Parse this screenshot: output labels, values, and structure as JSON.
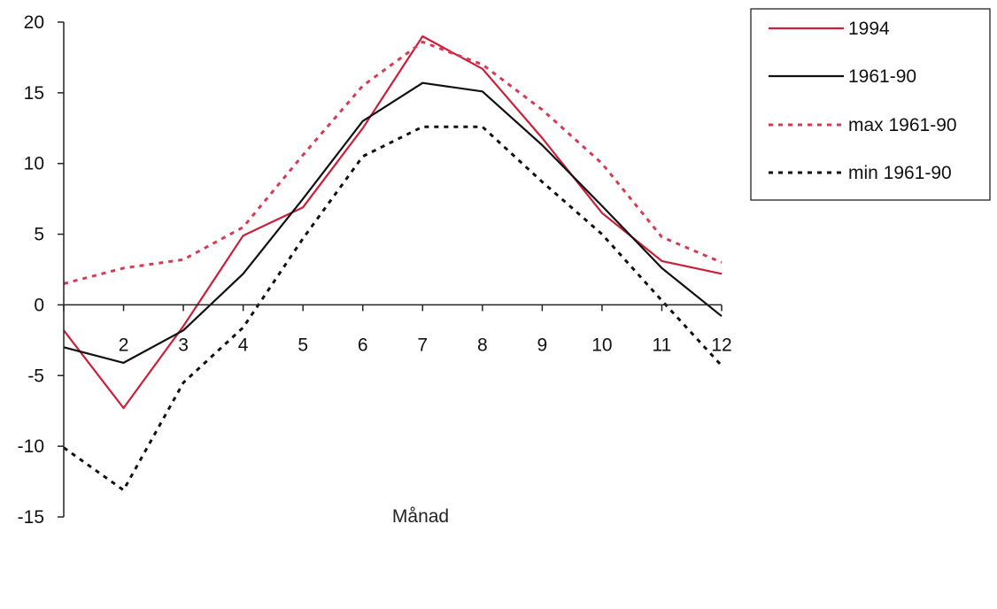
{
  "chart_data": {
    "type": "line",
    "title": "",
    "xlabel": "Månad",
    "ylabel": "",
    "x": [
      1,
      2,
      3,
      4,
      5,
      6,
      7,
      8,
      9,
      10,
      11,
      12
    ],
    "x_tick_labels": [
      "2",
      "3",
      "4",
      "5",
      "6",
      "7",
      "8",
      "9",
      "10",
      "11",
      "12"
    ],
    "y_ticks": [
      -15,
      -10,
      -5,
      0,
      5,
      10,
      15,
      20
    ],
    "y_tick_labels": [
      "-15",
      "-10",
      "-5",
      "0",
      "5",
      "10",
      "15",
      "20"
    ],
    "xlim": [
      1,
      12
    ],
    "ylim": [
      -15,
      20
    ],
    "grid": false,
    "legend_position": "top-right",
    "series": [
      {
        "name": "1994",
        "color": "#cc1f3a",
        "style": "solid",
        "values": [
          -1.8,
          -7.3,
          -1.5,
          4.9,
          6.9,
          12.5,
          19.0,
          16.7,
          11.8,
          6.5,
          3.1,
          2.2
        ]
      },
      {
        "name": "1961-90",
        "color": "#111111",
        "style": "solid",
        "values": [
          -3.0,
          -4.1,
          -1.8,
          2.2,
          7.5,
          13.0,
          15.7,
          15.1,
          11.3,
          7.0,
          2.6,
          -0.8
        ]
      },
      {
        "name": "max 1961-90",
        "color": "#d63a55",
        "style": "dotted",
        "values": [
          1.5,
          2.6,
          3.2,
          5.5,
          10.6,
          15.5,
          18.6,
          17.0,
          13.8,
          10.0,
          4.8,
          3.0
        ]
      },
      {
        "name": "min 1961-90",
        "color": "#111111",
        "style": "dotted",
        "values": [
          -10.1,
          -13.1,
          -5.5,
          -1.6,
          4.7,
          10.5,
          12.6,
          12.6,
          8.7,
          5.0,
          0.3,
          -4.3
        ]
      }
    ]
  }
}
